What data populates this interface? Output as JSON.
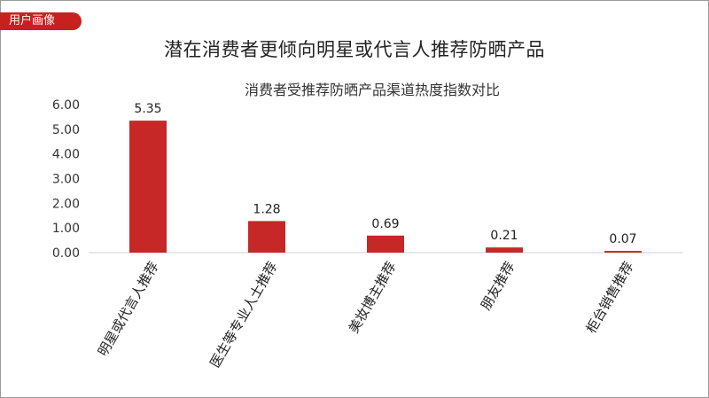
{
  "header": {
    "tag": "用户画像"
  },
  "colors": {
    "accent": "#c8201f",
    "bar": "#c62828"
  },
  "chart_data": {
    "type": "bar",
    "title": "潜在消费者更倾向明星或代言人推荐防晒产品",
    "subtitle": "消费者受推荐防晒产品渠道热度指数对比",
    "categories": [
      "明星或代言人推荐",
      "医生等专业人士推荐",
      "美妆博主推荐",
      "朋友推荐",
      "柜台销售推荐"
    ],
    "values": [
      5.35,
      1.28,
      0.69,
      0.21,
      0.07
    ],
    "value_labels": [
      "5.35",
      "1.28",
      "0.69",
      "0.21",
      "0.07"
    ],
    "y_ticks": [
      "0.00",
      "1.00",
      "2.00",
      "3.00",
      "4.00",
      "5.00",
      "6.00"
    ],
    "ylim": [
      0,
      6
    ],
    "xlabel": "",
    "ylabel": "",
    "grid": false,
    "legend": "none"
  }
}
